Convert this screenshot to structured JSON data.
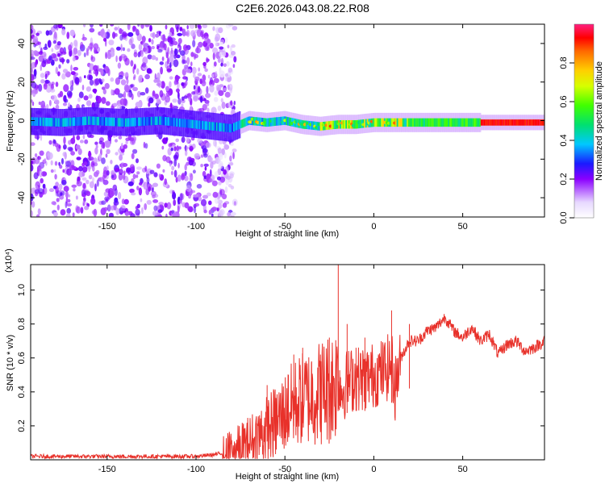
{
  "title": "C2E6.2026.043.08.22.R08",
  "colors": {
    "spectrum_core": "#ff0000",
    "snr_line": "#e8312a",
    "axis": "#000000"
  },
  "chart_data": [
    {
      "type": "heatmap",
      "title": "C2E6.2026.043.08.22.R08",
      "xlabel": "Height of straight line (km)",
      "ylabel": "Frequency (Hz)",
      "xlim": [
        -193,
        96
      ],
      "ylim": [
        -50,
        50
      ],
      "xticks": [
        -150,
        -100,
        -50,
        0,
        50
      ],
      "yticks": [
        40,
        20,
        0,
        -20,
        -40
      ],
      "grid": false,
      "colorbar": {
        "label": "Normalized spectral amplitude",
        "range": [
          0.0,
          1.0
        ],
        "ticks": [
          0.0,
          0.2,
          0.4,
          0.6,
          0.8
        ]
      },
      "description_series": {
        "center_frequency_hz": [
          [
            -190,
            -0.5
          ],
          [
            -175,
            -1
          ],
          [
            -160,
            0
          ],
          [
            -140,
            -1
          ],
          [
            -120,
            0
          ],
          [
            -100,
            -2
          ],
          [
            -90,
            -3
          ],
          [
            -80,
            -4
          ],
          [
            -70,
            0
          ],
          [
            -60,
            -1
          ],
          [
            -50,
            0
          ],
          [
            -40,
            -2
          ],
          [
            -30,
            -3
          ],
          [
            -20,
            -2
          ],
          [
            -10,
            -2
          ],
          [
            0,
            -1
          ],
          [
            10,
            -1
          ],
          [
            20,
            -1
          ],
          [
            40,
            -1
          ],
          [
            60,
            -1
          ],
          [
            80,
            -1
          ],
          [
            95,
            -1
          ]
        ],
        "scatter_region_km": [
          -193,
          -78
        ]
      }
    },
    {
      "type": "line",
      "xlabel": "Height of straight line (km)",
      "ylabel": "SNR (10 * v/v)",
      "yscale_label": "(x10⁴)",
      "xlim": [
        -193,
        96
      ],
      "ylim": [
        0,
        1.15
      ],
      "xticks": [
        -150,
        -100,
        -50,
        0,
        50
      ],
      "yticks": [
        0.2,
        0.4,
        0.6,
        0.8,
        1.0
      ],
      "grid": false,
      "series": [
        {
          "x": [
            -193,
            -180,
            -160,
            -140,
            -120,
            -100,
            -90,
            -85,
            -80,
            -75,
            -70,
            -65,
            -60,
            -55,
            -50,
            -45,
            -40,
            -35,
            -30,
            -25,
            -22,
            -20,
            -18,
            -15,
            -10,
            -5,
            0,
            5,
            10,
            12,
            15,
            20,
            25,
            30,
            35,
            40,
            45,
            50,
            55,
            60,
            65,
            70,
            75,
            80,
            85,
            90,
            96
          ],
          "y": [
            0.02,
            0.02,
            0.02,
            0.02,
            0.02,
            0.02,
            0.03,
            0.04,
            0.05,
            0.07,
            0.1,
            0.14,
            0.18,
            0.22,
            0.28,
            0.33,
            0.36,
            0.38,
            0.4,
            0.42,
            0.45,
            0.5,
            0.4,
            0.46,
            0.48,
            0.48,
            0.5,
            0.52,
            0.56,
            0.42,
            0.6,
            0.7,
            0.7,
            0.76,
            0.78,
            0.84,
            0.76,
            0.72,
            0.78,
            0.7,
            0.74,
            0.62,
            0.68,
            0.7,
            0.64,
            0.66,
            0.7
          ]
        }
      ],
      "spikes": [
        [
          -60,
          0.44
        ],
        [
          -55,
          0.36
        ],
        [
          -48,
          0.5
        ],
        [
          -45,
          0.62
        ],
        [
          -40,
          0.66
        ],
        [
          -35,
          0.58
        ],
        [
          -30,
          0.62
        ],
        [
          -25,
          0.72
        ],
        [
          -20,
          1.15
        ],
        [
          -15,
          0.8
        ],
        [
          -10,
          0.66
        ],
        [
          -5,
          0.72
        ],
        [
          10,
          0.88
        ],
        [
          20,
          0.8
        ]
      ]
    }
  ]
}
